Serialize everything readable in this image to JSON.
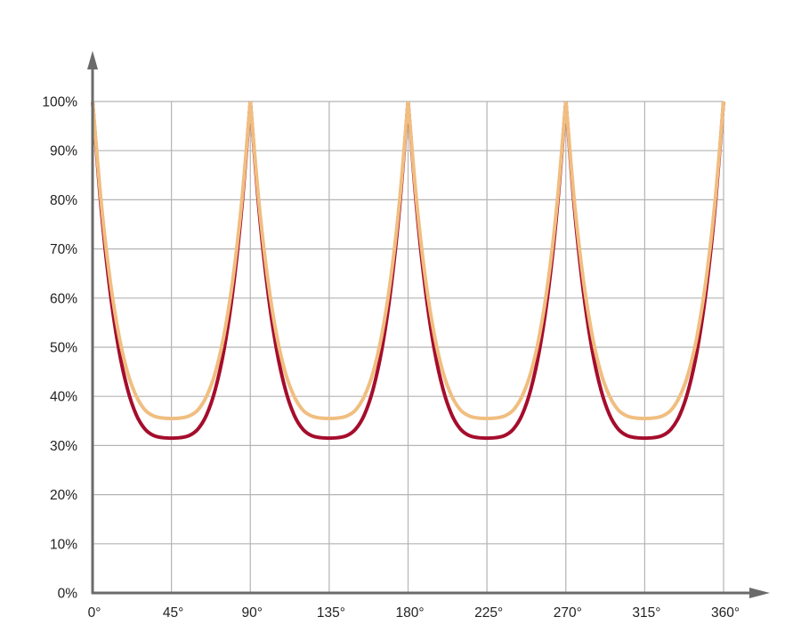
{
  "chart_data": {
    "type": "line",
    "title": "",
    "xlabel": "",
    "ylabel": "",
    "xlim": [
      0,
      360
    ],
    "ylim": [
      0,
      100
    ],
    "grid": true,
    "x_ticks": [
      "0°",
      "45°",
      "90°",
      "135°",
      "180°",
      "225°",
      "270°",
      "315°",
      "360°"
    ],
    "x_tick_values": [
      0,
      45,
      90,
      135,
      180,
      225,
      270,
      315,
      360
    ],
    "y_ticks": [
      "0%",
      "10%",
      "20%",
      "30%",
      "40%",
      "50%",
      "60%",
      "70%",
      "80%",
      "90%",
      "100%"
    ],
    "y_tick_values": [
      0,
      10,
      20,
      30,
      40,
      50,
      60,
      70,
      80,
      90,
      100
    ],
    "x": [
      0,
      5,
      10,
      15,
      20,
      25,
      30,
      35,
      40,
      45,
      50,
      55,
      60,
      65,
      70,
      75,
      80,
      85,
      90,
      95,
      100,
      105,
      110,
      115,
      120,
      125,
      130,
      135,
      140,
      145,
      150,
      155,
      160,
      165,
      170,
      175,
      180,
      185,
      190,
      195,
      200,
      205,
      210,
      215,
      220,
      225,
      230,
      235,
      240,
      245,
      250,
      255,
      260,
      265,
      270,
      275,
      280,
      285,
      290,
      295,
      300,
      305,
      310,
      315,
      320,
      325,
      330,
      335,
      340,
      345,
      350,
      355,
      360
    ],
    "series": [
      {
        "color": "#a50d2c",
        "values": [
          100,
          77.9,
          61.4,
          49.5,
          41.4,
          36.2,
          33.3,
          32.0,
          31.6,
          31.5,
          31.6,
          32.0,
          33.3,
          36.2,
          41.4,
          49.5,
          61.4,
          77.9,
          100,
          77.9,
          61.4,
          49.5,
          41.4,
          36.2,
          33.3,
          32.0,
          31.6,
          31.5,
          31.6,
          32.0,
          33.3,
          36.2,
          41.4,
          49.5,
          61.4,
          77.9,
          100,
          77.9,
          61.4,
          49.5,
          41.4,
          36.2,
          33.3,
          32.0,
          31.6,
          31.5,
          31.6,
          32.0,
          33.3,
          36.2,
          41.4,
          49.5,
          61.4,
          77.9,
          100,
          77.9,
          61.4,
          49.5,
          41.4,
          36.2,
          33.3,
          32.0,
          31.6,
          31.5,
          31.6,
          32.0,
          33.3,
          36.2,
          41.4,
          49.5,
          61.4,
          77.9,
          100
        ]
      },
      {
        "color": "#f0be80",
        "values": [
          100,
          79.2,
          63.7,
          52.5,
          44.8,
          40.0,
          37.2,
          36.0,
          35.6,
          35.5,
          35.6,
          36.0,
          37.2,
          40.0,
          44.8,
          52.5,
          63.7,
          79.2,
          100,
          79.2,
          63.7,
          52.5,
          44.8,
          40.0,
          37.2,
          36.0,
          35.6,
          35.5,
          35.6,
          36.0,
          37.2,
          40.0,
          44.8,
          52.5,
          63.7,
          79.2,
          100,
          79.2,
          63.7,
          52.5,
          44.8,
          40.0,
          37.2,
          36.0,
          35.6,
          35.5,
          35.6,
          36.0,
          37.2,
          40.0,
          44.8,
          52.5,
          63.7,
          79.2,
          100,
          79.2,
          63.7,
          52.5,
          44.8,
          40.0,
          37.2,
          36.0,
          35.6,
          35.5,
          35.6,
          36.0,
          37.2,
          40.0,
          44.8,
          52.5,
          63.7,
          79.2,
          100
        ]
      }
    ],
    "colors": {
      "axis": "#6b6b6b",
      "grid": "#b4b4b4"
    }
  }
}
